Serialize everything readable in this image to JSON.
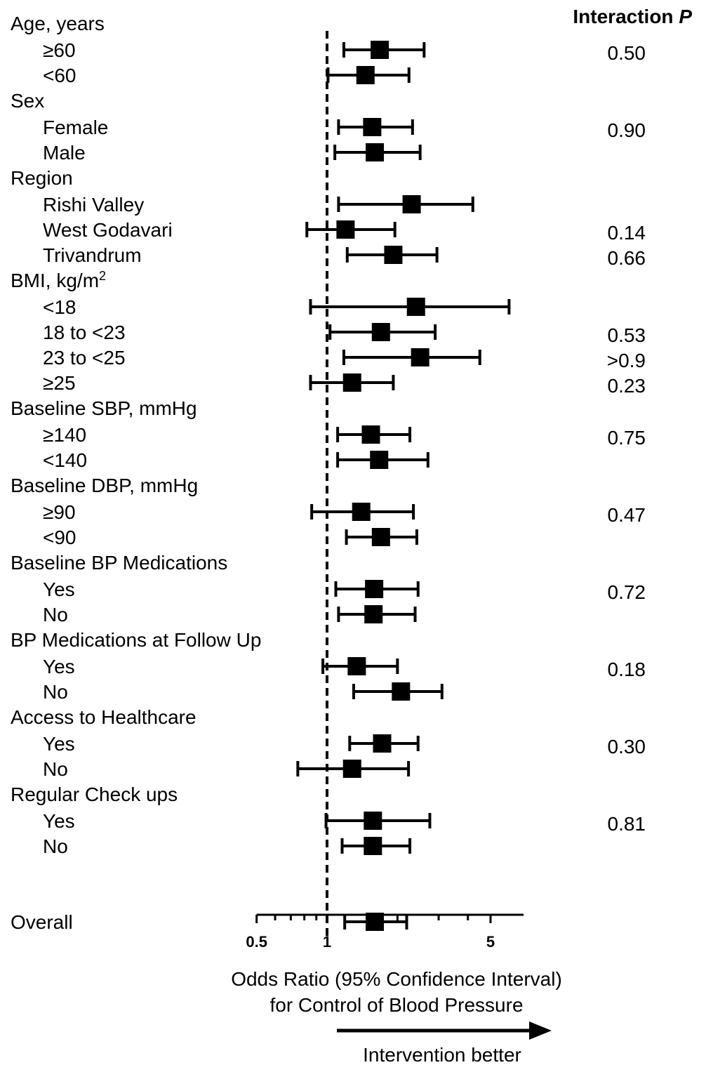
{
  "chart_data": {
    "type": "forest",
    "header": {
      "interaction_label": "Interaction ",
      "interaction_symbol": "P"
    },
    "x_axis": {
      "scale": "log",
      "range": [
        0.5,
        8
      ],
      "tick_labels": [
        "0.5",
        "1",
        "5"
      ],
      "reference_line": 1,
      "title_line1": "Odds Ratio (95% Confidence Interval)",
      "title_line2": "for Control of Blood Pressure",
      "direction_label": "Intervention better"
    },
    "rows": [
      {
        "kind": "group",
        "label": "Age, years"
      },
      {
        "kind": "sub",
        "label": "≥60",
        "or": 1.68,
        "lo": 1.18,
        "hi": 2.6,
        "p": "0.50"
      },
      {
        "kind": "sub",
        "label": "<60",
        "or": 1.46,
        "lo": 1.01,
        "hi": 2.24
      },
      {
        "kind": "group",
        "label": "Sex"
      },
      {
        "kind": "sub",
        "label": "Female",
        "or": 1.56,
        "lo": 1.12,
        "hi": 2.32,
        "p": "0.90"
      },
      {
        "kind": "sub",
        "label": "Male",
        "or": 1.6,
        "lo": 1.08,
        "hi": 2.5
      },
      {
        "kind": "group",
        "label": "Region"
      },
      {
        "kind": "sub",
        "label": "Rishi Valley",
        "or": 2.3,
        "lo": 1.12,
        "hi": 4.2
      },
      {
        "kind": "sub",
        "label": "West Godavari",
        "or": 1.2,
        "lo": 0.82,
        "hi": 1.95,
        "p": "0.14"
      },
      {
        "kind": "sub",
        "label": "Trivandrum",
        "or": 1.92,
        "lo": 1.22,
        "hi": 2.95,
        "p": "0.66"
      },
      {
        "kind": "group",
        "label": "BMI, kg/m",
        "sup": "2"
      },
      {
        "kind": "sub",
        "label": "<18",
        "or": 2.4,
        "lo": 0.85,
        "hi": 6.0
      },
      {
        "kind": "sub",
        "label": "18 to <23",
        "or": 1.7,
        "lo": 1.03,
        "hi": 2.9,
        "p": "0.53"
      },
      {
        "kind": "sub",
        "label": "23 to <25",
        "or": 2.5,
        "lo": 1.18,
        "hi": 4.5,
        "p": ">0.9"
      },
      {
        "kind": "sub",
        "label": "≥25",
        "or": 1.28,
        "lo": 0.85,
        "hi": 1.92,
        "p": "0.23"
      },
      {
        "kind": "group",
        "label": "Baseline SBP, mmHg"
      },
      {
        "kind": "sub",
        "label": "≥140",
        "or": 1.54,
        "lo": 1.11,
        "hi": 2.26,
        "p": "0.75"
      },
      {
        "kind": "sub",
        "label": "<140",
        "or": 1.67,
        "lo": 1.11,
        "hi": 2.7
      },
      {
        "kind": "group",
        "label": "Baseline DBP, mmHg"
      },
      {
        "kind": "sub",
        "label": "≥90",
        "or": 1.4,
        "lo": 0.86,
        "hi": 2.34,
        "p": "0.47"
      },
      {
        "kind": "sub",
        "label": "<90",
        "or": 1.7,
        "lo": 1.21,
        "hi": 2.42
      },
      {
        "kind": "group",
        "label": "Baseline BP Medications"
      },
      {
        "kind": "sub",
        "label": "Yes",
        "or": 1.59,
        "lo": 1.09,
        "hi": 2.45,
        "p": "0.72"
      },
      {
        "kind": "sub",
        "label": "No",
        "or": 1.58,
        "lo": 1.12,
        "hi": 2.38
      },
      {
        "kind": "group",
        "label": "BP Medications at Follow Up"
      },
      {
        "kind": "sub",
        "label": "Yes",
        "or": 1.34,
        "lo": 0.96,
        "hi": 2.0,
        "p": "0.18"
      },
      {
        "kind": "sub",
        "label": "No",
        "or": 2.07,
        "lo": 1.3,
        "hi": 3.1
      },
      {
        "kind": "group",
        "label": "Access to Healthcare"
      },
      {
        "kind": "sub",
        "label": "Yes",
        "or": 1.72,
        "lo": 1.25,
        "hi": 2.45,
        "p": "0.30"
      },
      {
        "kind": "sub",
        "label": "No",
        "or": 1.28,
        "lo": 0.75,
        "hi": 2.23
      },
      {
        "kind": "group",
        "label": "Regular Check ups"
      },
      {
        "kind": "sub",
        "label": "Yes",
        "or": 1.57,
        "lo": 0.99,
        "hi": 2.75,
        "p": "0.81"
      },
      {
        "kind": "sub",
        "label": "No",
        "or": 1.57,
        "lo": 1.16,
        "hi": 2.26
      },
      {
        "kind": "overall",
        "label": "Overall",
        "or": 1.6,
        "lo": 1.19,
        "hi": 2.19
      }
    ]
  }
}
